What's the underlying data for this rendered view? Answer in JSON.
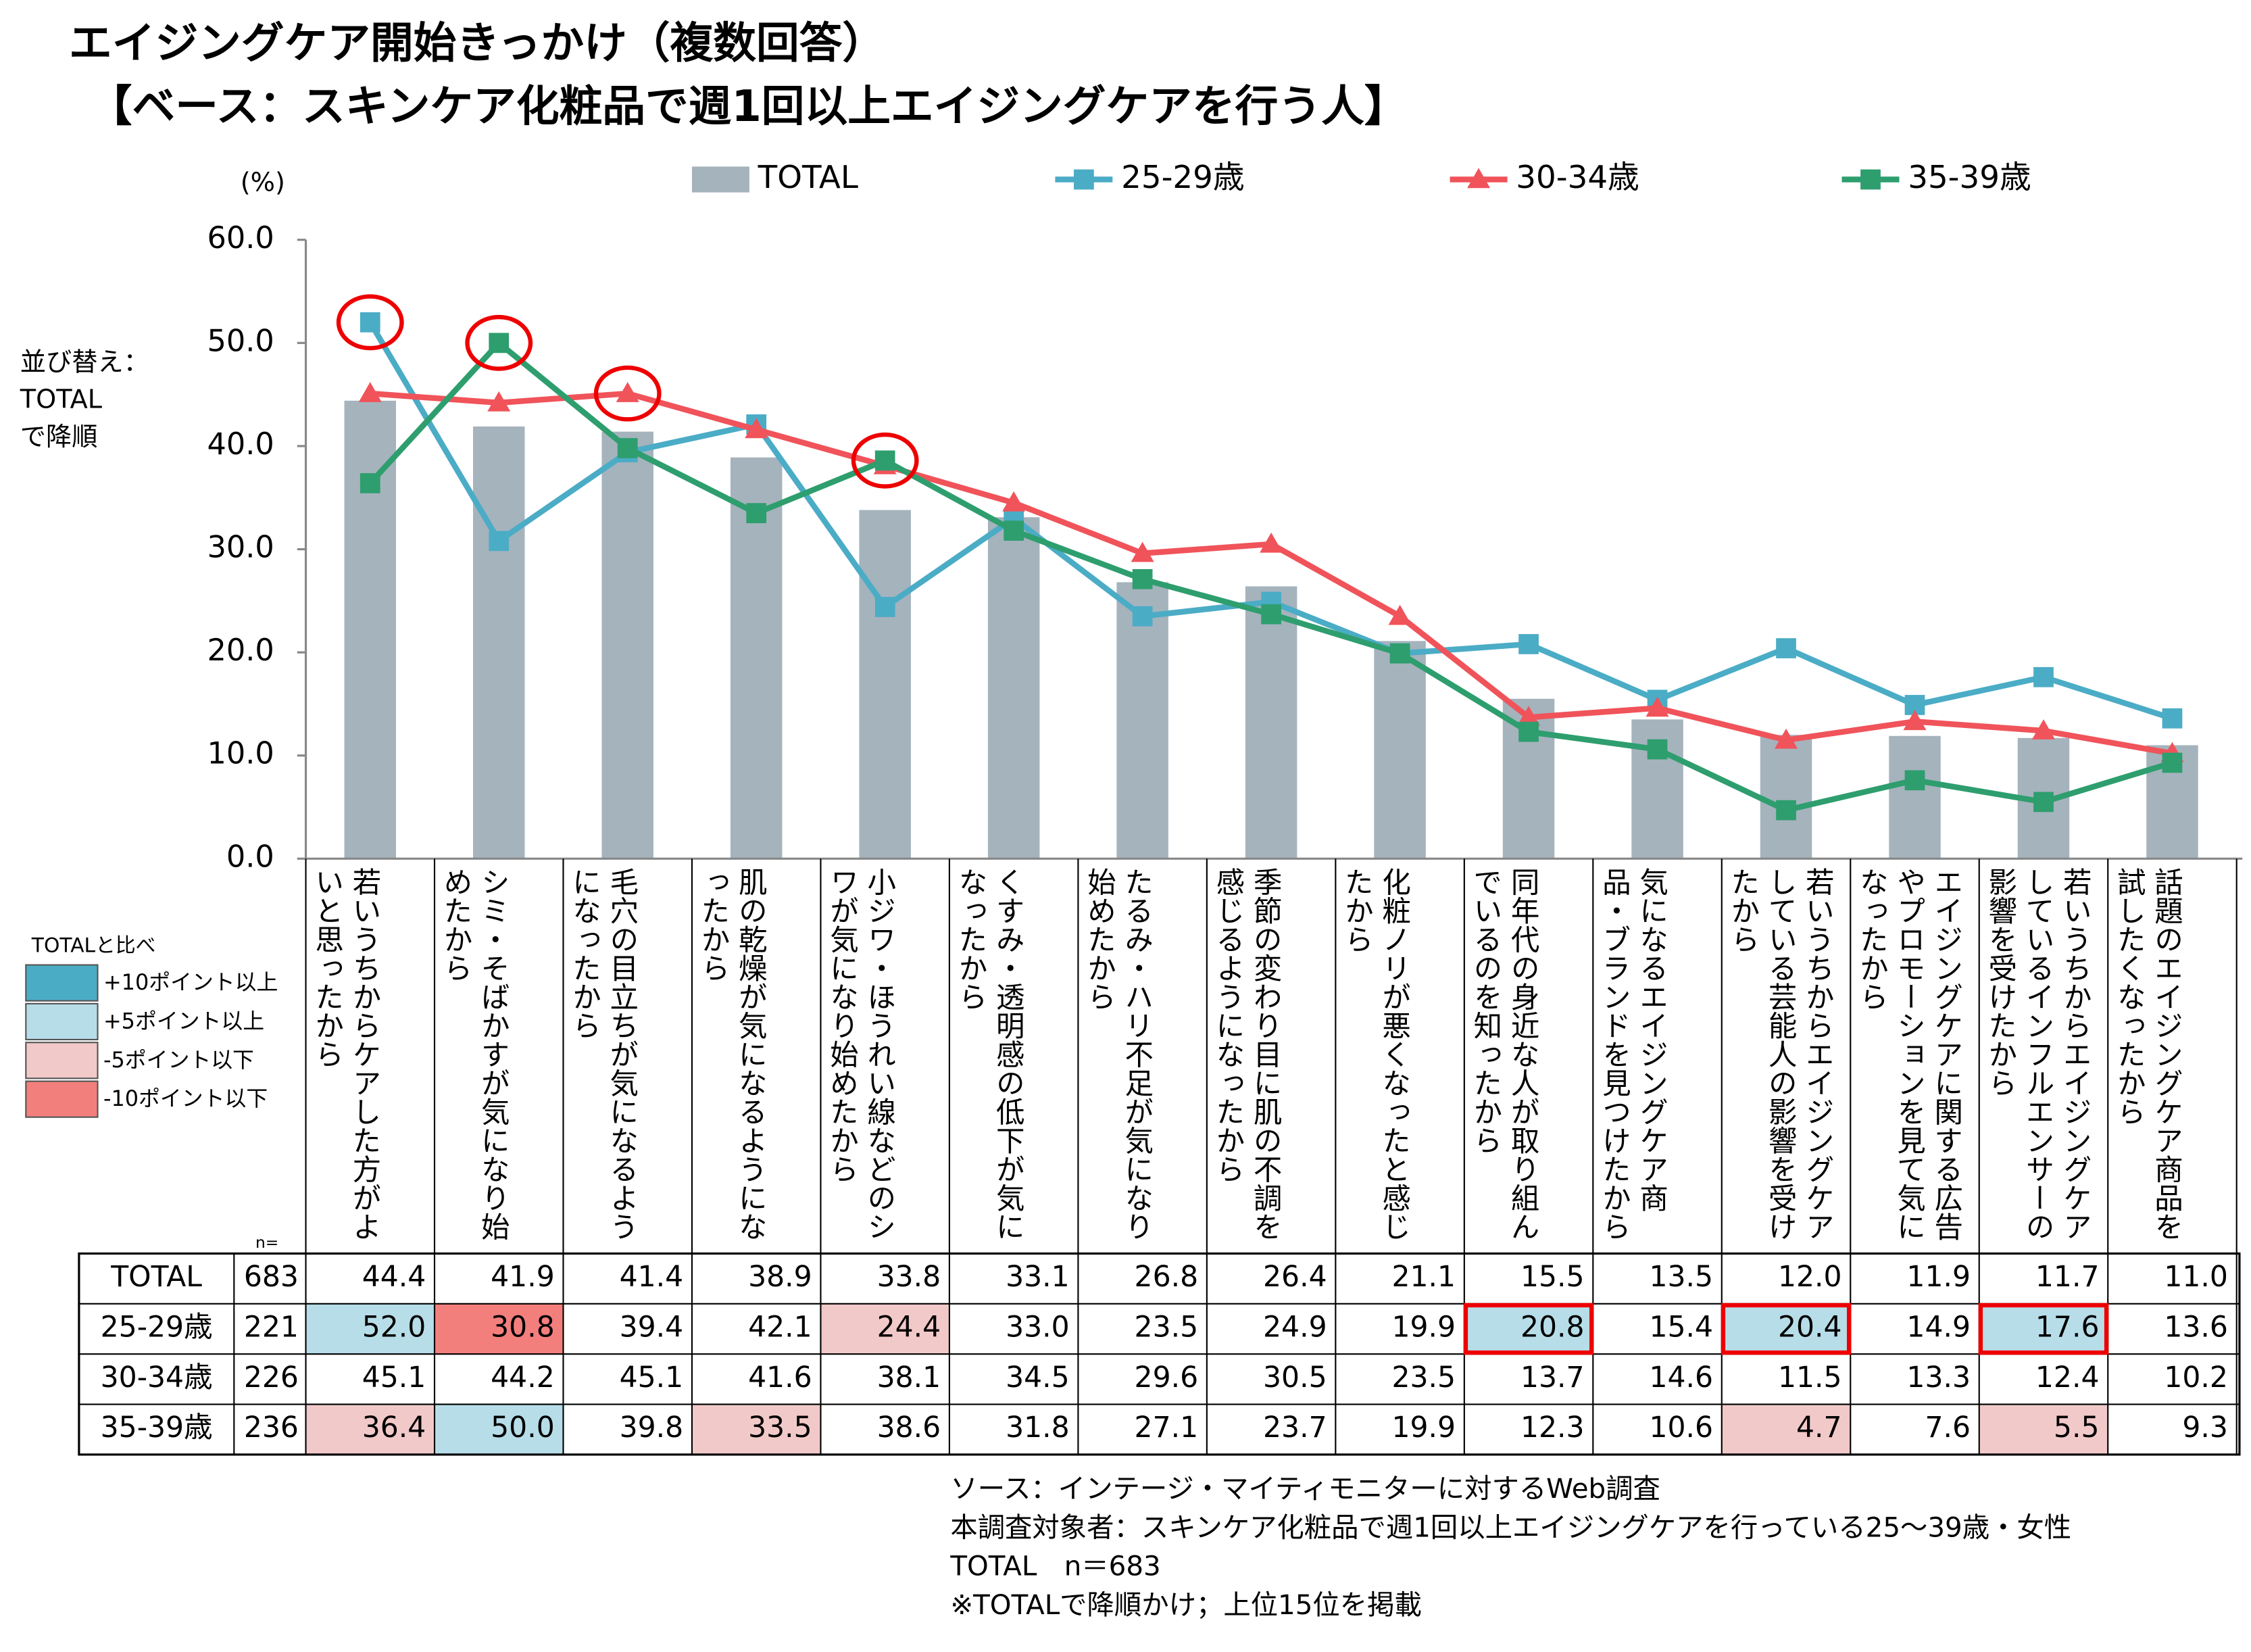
{
  "chart_data": {
    "type": "combo",
    "title": "エイジングケア開始きっかけ（複数回答）",
    "subtitle": "【ベース：スキンケア化粧品で週1回以上エイジングケアを行う人】",
    "y_unit": "(%)",
    "sort_note": "並び替え：TOTALで降順",
    "ylim": [
      0,
      60
    ],
    "yticks": [
      {
        "value": 0,
        "label": "0.0"
      },
      {
        "value": 10,
        "label": "10.0"
      },
      {
        "value": 20,
        "label": "20.0"
      },
      {
        "value": 30,
        "label": "30.0"
      },
      {
        "value": 40,
        "label": "40.0"
      },
      {
        "value": 50,
        "label": "50.0"
      },
      {
        "value": 60,
        "label": "60.0"
      }
    ],
    "categories": [
      "若いうちからケアした方がよいと思ったから",
      "シミ・そばかすが気になり始めたから",
      "毛穴の目立ちが気になるようになったから",
      "肌の乾燥が気になるようになったから",
      "小ジワ・ほうれい線などのシワが気になり始めたから",
      "くすみ・透明感の低下が気になったから",
      "たるみ・ハリ不足が気になり始めたから",
      "季節の変わり目に肌の不調を感じるようになったから",
      "化粧ノリが悪くなったと感じたから",
      "同年代の身近な人が取り組んでいるのを知ったから",
      "気になるエイジングケア商品・ブランドを見つけたから",
      "若いうちからエイジングケアしている芸能人の影響を受けたから",
      "エイジングケアに関する広告やプロモーションを見て気になったから",
      "若いうちからエイジングケアしているインフルエンサーの影響を受けたから",
      "話題のエイジングケア商品を試したくなったから"
    ],
    "n_label": "n=",
    "series": [
      {
        "name": "TOTAL",
        "kind": "bar",
        "color": "#a5b3bd",
        "n": 683,
        "values": [
          44.4,
          41.9,
          41.4,
          38.9,
          33.8,
          33.1,
          26.8,
          26.4,
          21.1,
          15.5,
          13.5,
          12.0,
          11.9,
          11.7,
          11.0
        ],
        "value_labels": [
          "44.4",
          "41.9",
          "41.4",
          "38.9",
          "33.8",
          "33.1",
          "26.8",
          "26.4",
          "21.1",
          "15.5",
          "13.5",
          "12.0",
          "11.9",
          "11.7",
          "11.0"
        ]
      },
      {
        "name": "25-29歳",
        "kind": "line",
        "marker": "square",
        "color": "#4bacc6",
        "n": 221,
        "values": [
          52.0,
          30.8,
          39.4,
          42.1,
          24.4,
          33.0,
          23.5,
          24.9,
          19.9,
          20.8,
          15.4,
          20.4,
          14.9,
          17.6,
          13.6
        ],
        "value_labels": [
          "52.0",
          "30.8",
          "39.4",
          "42.1",
          "24.4",
          "33.0",
          "23.5",
          "24.9",
          "19.9",
          "20.8",
          "15.4",
          "20.4",
          "14.9",
          "17.6",
          "13.6"
        ],
        "cell_fill": [
          "#b7dde8",
          "#f37f7d",
          null,
          null,
          "#f2c9c9",
          null,
          null,
          null,
          null,
          "#b7dde8",
          null,
          "#b7dde8",
          null,
          "#b7dde8",
          null
        ],
        "boxed": [
          9,
          11,
          13
        ],
        "circled": [
          0
        ]
      },
      {
        "name": "30-34歳",
        "kind": "line",
        "marker": "triangle",
        "color": "#f0535a",
        "n": 226,
        "values": [
          45.1,
          44.2,
          45.1,
          41.6,
          38.1,
          34.5,
          29.6,
          30.5,
          23.5,
          13.7,
          14.6,
          11.5,
          13.3,
          12.4,
          10.2
        ],
        "value_labels": [
          "45.1",
          "44.2",
          "45.1",
          "41.6",
          "38.1",
          "34.5",
          "29.6",
          "30.5",
          "23.5",
          "13.7",
          "14.6",
          "11.5",
          "13.3",
          "12.4",
          "10.2"
        ],
        "circled": [
          2
        ]
      },
      {
        "name": "35-39歳",
        "kind": "line",
        "marker": "square",
        "color": "#2e9e6e",
        "n": 236,
        "values": [
          36.4,
          50.0,
          39.8,
          33.5,
          38.6,
          31.8,
          27.1,
          23.7,
          19.9,
          12.3,
          10.6,
          4.7,
          7.6,
          5.5,
          9.3
        ],
        "value_labels": [
          "36.4",
          "50.0",
          "39.8",
          "33.5",
          "38.6",
          "31.8",
          "27.1",
          "23.7",
          "19.9",
          "12.3",
          "10.6",
          "4.7",
          "7.6",
          "5.5",
          "9.3"
        ],
        "cell_fill": [
          "#f2c9c9",
          "#b7dde8",
          null,
          "#f2c9c9",
          null,
          null,
          null,
          null,
          null,
          null,
          null,
          "#f2c9c9",
          null,
          "#f2c9c9",
          null
        ],
        "circled": [
          1,
          4
        ]
      }
    ],
    "highlight_legend": {
      "title": "TOTALと比べ",
      "items": [
        {
          "label": "+10ポイント以上",
          "color": "#4bacc6"
        },
        {
          "label": "+5ポイント以上",
          "color": "#b7dde8"
        },
        {
          "label": "-5ポイント以下",
          "color": "#f2c9c9"
        },
        {
          "label": "-10ポイント以下",
          "color": "#f37f7d"
        }
      ]
    },
    "notes": [
      "ソース：インテージ・マイティモニターに対するWeb調査",
      "本調査対象者：スキンケア化粧品で週1回以上エイジングケアを行っている25～39歳・女性",
      "TOTAL　n＝683",
      "※TOTALで降順かけ；上位15位を掲載"
    ]
  }
}
